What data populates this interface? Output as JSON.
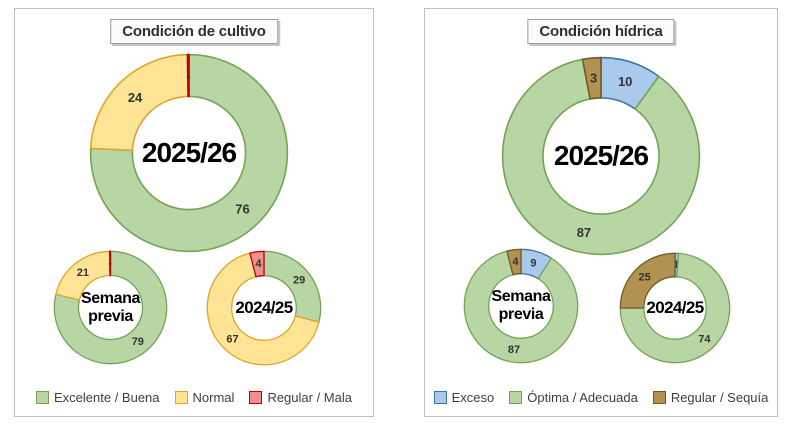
{
  "palette": {
    "green": {
      "fill": "#B8D6A4",
      "stroke": "#74A356"
    },
    "yellow": {
      "fill": "#FFE495",
      "stroke": "#DDA62A"
    },
    "red": {
      "fill": "#EE8F8F",
      "stroke": "#C00000"
    },
    "blue": {
      "fill": "#A9CAEB",
      "stroke": "#4074A8"
    },
    "brown": {
      "fill": "#B29251",
      "stroke": "#6E5B26"
    }
  },
  "chart_data": [
    {
      "type": "donut",
      "title": "Condición de cultivo",
      "legend_position": "bottom",
      "categories": [
        "Excelente / Buena",
        "Normal",
        "Regular / Mala"
      ],
      "colors": [
        "green",
        "yellow",
        "red"
      ],
      "rings": [
        {
          "name": "2025/26",
          "center": [
            "2025/26"
          ],
          "values": [
            76,
            24,
            0
          ],
          "labels": [
            "76",
            "24",
            "-"
          ]
        },
        {
          "name": "Semana previa",
          "center": [
            "Semana",
            "previa"
          ],
          "values": [
            79,
            21,
            0
          ],
          "labels": [
            "79",
            "21",
            "-"
          ]
        },
        {
          "name": "2024/25",
          "center": [
            "2024/25"
          ],
          "values": [
            29,
            67,
            4
          ],
          "labels": [
            "29",
            "67",
            "4"
          ]
        }
      ]
    },
    {
      "type": "donut",
      "title": "Condición hídrica",
      "legend_position": "bottom",
      "categories": [
        "Exceso",
        "Óptima / Adecuada",
        "Regular / Sequía"
      ],
      "colors": [
        "blue",
        "green",
        "brown"
      ],
      "rings": [
        {
          "name": "2025/26",
          "center": [
            "2025/26"
          ],
          "values": [
            10,
            87,
            3
          ],
          "labels": [
            "10",
            "87",
            "3"
          ]
        },
        {
          "name": "Semana previa",
          "center": [
            "Semana",
            "previa"
          ],
          "values": [
            9,
            87,
            4
          ],
          "labels": [
            "9",
            "87",
            "4"
          ]
        },
        {
          "name": "2024/25",
          "center": [
            "2024/25"
          ],
          "values": [
            1,
            74,
            25
          ],
          "labels": [
            "1",
            "74",
            "25"
          ]
        }
      ]
    }
  ]
}
